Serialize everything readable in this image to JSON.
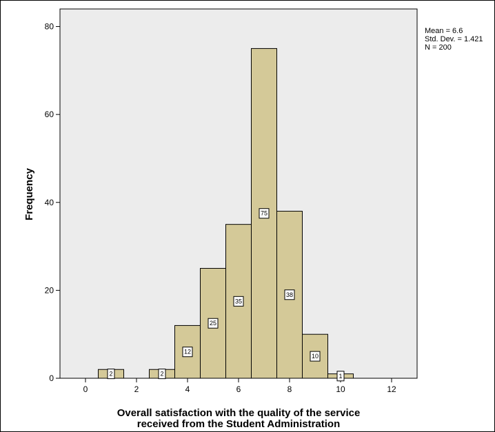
{
  "chart_data": {
    "type": "bar",
    "subtype": "histogram",
    "xlabel_lines": [
      "Overall satisfaction with the quality of the service",
      "received from the Student Administration"
    ],
    "ylabel": "Frequency",
    "x_ticks": [
      0,
      2,
      4,
      6,
      8,
      10,
      12
    ],
    "y_ticks": [
      0,
      20,
      40,
      60,
      80
    ],
    "xlim": [
      -1,
      13
    ],
    "ylim": [
      0,
      84
    ],
    "bins": [
      {
        "x0": 0.5,
        "x1": 1.5,
        "value": 2
      },
      {
        "x0": 2.5,
        "x1": 3.5,
        "value": 2
      },
      {
        "x0": 3.5,
        "x1": 4.5,
        "value": 12
      },
      {
        "x0": 4.5,
        "x1": 5.5,
        "value": 25
      },
      {
        "x0": 5.5,
        "x1": 6.5,
        "value": 35
      },
      {
        "x0": 6.5,
        "x1": 7.5,
        "value": 75
      },
      {
        "x0": 7.5,
        "x1": 8.5,
        "value": 38
      },
      {
        "x0": 8.5,
        "x1": 9.5,
        "value": 10
      },
      {
        "x0": 9.5,
        "x1": 10.5,
        "value": 1
      }
    ],
    "stats": {
      "mean": "Mean = 6.6",
      "std": "Std. Dev. = 1.421",
      "n": "N = 200"
    },
    "colors": {
      "plot_background": "#ececec",
      "bar_fill": "#d4c998",
      "bar_stroke": "#000000"
    }
  }
}
